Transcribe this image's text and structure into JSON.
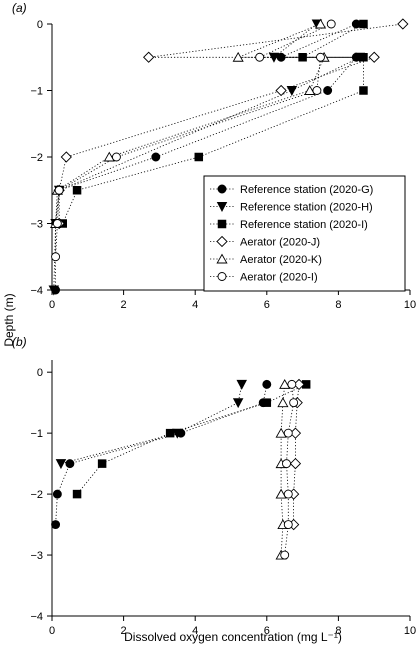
{
  "figure": {
    "shared_ylabel": "Depth (m)",
    "shared_xlabel": "Dissolved oxygen concentration (mg L⁻¹)"
  },
  "chart_data": [
    {
      "type": "scatter",
      "panel_label": "(a)",
      "xlim": [
        0,
        10
      ],
      "ylim": [
        -4,
        0
      ],
      "x_ticks": [
        "0",
        "2",
        "4",
        "6",
        "8",
        "10"
      ],
      "x_ticks_shown": false,
      "y_ticks": [
        "0",
        "−1",
        "−2",
        "−3",
        "−4"
      ],
      "legend_position": "lower-right",
      "series": [
        {
          "name": "Reference station (2020-G)",
          "marker": "circle-filled",
          "points": [
            [
              8.5,
              0
            ],
            [
              6.4,
              -0.5
            ],
            [
              8.5,
              -0.5
            ],
            [
              7.7,
              -1
            ],
            [
              2.9,
              -2
            ],
            [
              0.2,
              -2.5
            ],
            [
              0.1,
              -3
            ],
            [
              0.1,
              -4
            ]
          ]
        },
        {
          "name": "Reference station (2020-H)",
          "marker": "triangle-down-filled",
          "points": [
            [
              7.4,
              0
            ],
            [
              6.2,
              -0.5
            ],
            [
              8.6,
              -0.5
            ],
            [
              6.7,
              -1
            ],
            [
              0.2,
              -2.5
            ],
            [
              0.1,
              -3
            ],
            [
              0.05,
              -4
            ]
          ]
        },
        {
          "name": "Reference station (2020-I)",
          "marker": "square-filled",
          "points": [
            [
              8.7,
              0
            ],
            [
              7.0,
              -0.5
            ],
            [
              8.7,
              -0.5
            ],
            [
              8.7,
              -1
            ],
            [
              4.1,
              -2
            ],
            [
              0.7,
              -2.5
            ],
            [
              0.3,
              -3
            ]
          ]
        },
        {
          "name": "Aerator (2020-J)",
          "marker": "diamond-open",
          "points": [
            [
              9.8,
              0
            ],
            [
              2.7,
              -0.5
            ],
            [
              9.0,
              -0.5
            ],
            [
              6.4,
              -1
            ],
            [
              0.4,
              -2
            ],
            [
              0.2,
              -2.5
            ],
            [
              0.2,
              -3
            ]
          ]
        },
        {
          "name": "Aerator (2020-K)",
          "marker": "triangle-up-open",
          "points": [
            [
              7.5,
              0
            ],
            [
              5.2,
              -0.5
            ],
            [
              7.6,
              -0.5
            ],
            [
              7.2,
              -1
            ],
            [
              1.6,
              -2
            ],
            [
              0.15,
              -2.5
            ],
            [
              0.1,
              -3
            ]
          ]
        },
        {
          "name": "Aerator (2020-I)",
          "marker": "circle-open",
          "points": [
            [
              7.8,
              0
            ],
            [
              5.8,
              -0.5
            ],
            [
              7.5,
              -0.5
            ],
            [
              7.4,
              -1
            ],
            [
              1.8,
              -2
            ],
            [
              0.2,
              -2.5
            ],
            [
              0.15,
              -3
            ],
            [
              0.1,
              -3.5
            ]
          ]
        }
      ]
    },
    {
      "type": "scatter",
      "panel_label": "(b)",
      "xlim": [
        0,
        10
      ],
      "ylim": [
        -4,
        0.2
      ],
      "x_ticks": [
        "0",
        "2",
        "4",
        "6",
        "8",
        "10"
      ],
      "x_ticks_shown": true,
      "y_ticks": [
        "0",
        "−1",
        "−2",
        "−3",
        "−4"
      ],
      "series": [
        {
          "name": "Reference station (2020-G)",
          "marker": "circle-filled",
          "points": [
            [
              6.0,
              -0.2
            ],
            [
              5.9,
              -0.5
            ],
            [
              3.6,
              -1
            ],
            [
              0.5,
              -1.5
            ],
            [
              0.15,
              -2
            ],
            [
              0.1,
              -2.5
            ]
          ]
        },
        {
          "name": "Reference station (2020-H)",
          "marker": "triangle-down-filled",
          "points": [
            [
              5.3,
              -0.2
            ],
            [
              5.2,
              -0.5
            ],
            [
              3.5,
              -1
            ],
            [
              0.25,
              -1.5
            ]
          ]
        },
        {
          "name": "Reference station (2020-I)",
          "marker": "square-filled",
          "points": [
            [
              7.1,
              -0.2
            ],
            [
              6.0,
              -0.5
            ],
            [
              3.3,
              -1
            ],
            [
              1.4,
              -1.5
            ],
            [
              0.7,
              -2
            ]
          ]
        },
        {
          "name": "Aerator (2020-J)",
          "marker": "diamond-open",
          "points": [
            [
              6.9,
              -0.2
            ],
            [
              6.85,
              -0.5
            ],
            [
              6.8,
              -1
            ],
            [
              6.8,
              -1.5
            ],
            [
              6.75,
              -2
            ],
            [
              6.75,
              -2.5
            ]
          ]
        },
        {
          "name": "Aerator (2020-K)",
          "marker": "triangle-up-open",
          "points": [
            [
              6.5,
              -0.2
            ],
            [
              6.45,
              -0.5
            ],
            [
              6.4,
              -1
            ],
            [
              6.4,
              -1.5
            ],
            [
              6.4,
              -2
            ],
            [
              6.45,
              -2.5
            ],
            [
              6.4,
              -3
            ]
          ]
        },
        {
          "name": "Aerator (2020-I)",
          "marker": "circle-open",
          "points": [
            [
              6.7,
              -0.2
            ],
            [
              6.75,
              -0.5
            ],
            [
              6.6,
              -1
            ],
            [
              6.55,
              -1.5
            ],
            [
              6.6,
              -2
            ],
            [
              6.6,
              -2.5
            ],
            [
              6.5,
              -3
            ]
          ]
        }
      ]
    }
  ]
}
